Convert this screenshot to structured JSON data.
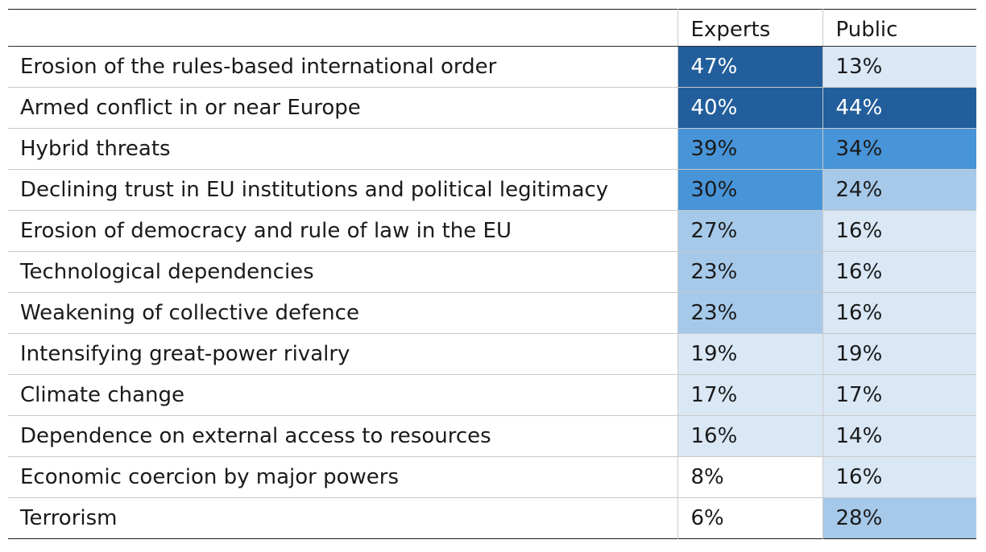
{
  "chart_data": {
    "type": "heatmap",
    "columns": [
      "",
      "Experts",
      "Public"
    ],
    "rows": [
      {
        "label": "Erosion of the rules-based international order",
        "experts": "47%",
        "public": "13%",
        "experts_value": 47,
        "public_value": 13
      },
      {
        "label": "Armed conflict in or near Europe",
        "experts": "40%",
        "public": "44%",
        "experts_value": 40,
        "public_value": 44
      },
      {
        "label": "Hybrid threats",
        "experts": "39%",
        "public": "34%",
        "experts_value": 39,
        "public_value": 34
      },
      {
        "label": "Declining trust in EU institutions and political legitimacy",
        "experts": "30%",
        "public": "24%",
        "experts_value": 30,
        "public_value": 24
      },
      {
        "label": "Erosion of democracy and rule of law in the EU",
        "experts": "27%",
        "public": "16%",
        "experts_value": 27,
        "public_value": 16
      },
      {
        "label": "Technological dependencies",
        "experts": "23%",
        "public": "16%",
        "experts_value": 23,
        "public_value": 16
      },
      {
        "label": "Weakening of collective defence",
        "experts": "23%",
        "public": "16%",
        "experts_value": 23,
        "public_value": 16
      },
      {
        "label": "Intensifying great-power rivalry",
        "experts": "19%",
        "public": "19%",
        "experts_value": 19,
        "public_value": 19
      },
      {
        "label": "Climate change",
        "experts": "17%",
        "public": "17%",
        "experts_value": 17,
        "public_value": 17
      },
      {
        "label": "Dependence on external access to resources",
        "experts": "16%",
        "public": "14%",
        "experts_value": 16,
        "public_value": 14
      },
      {
        "label": "Economic coercion by major powers",
        "experts": "8%",
        "public": "16%",
        "experts_value": 8,
        "public_value": 16
      },
      {
        "label": "Terrorism",
        "experts": "6%",
        "public": "28%",
        "experts_value": 6,
        "public_value": 28
      }
    ],
    "color_scale": [
      {
        "min": 40,
        "color": "#225e9c",
        "text_color": "#ffffff"
      },
      {
        "min": 30,
        "color": "#4894d8",
        "text_color": "#1a1a1a"
      },
      {
        "min": 20,
        "color": "#a6c9ea",
        "text_color": "#1a1a1a"
      },
      {
        "min": 10,
        "color": "#dae8f6",
        "text_color": "#1a1a1a"
      },
      {
        "min": 0,
        "color": "#ffffff",
        "text_color": "#1a1a1a"
      }
    ]
  }
}
